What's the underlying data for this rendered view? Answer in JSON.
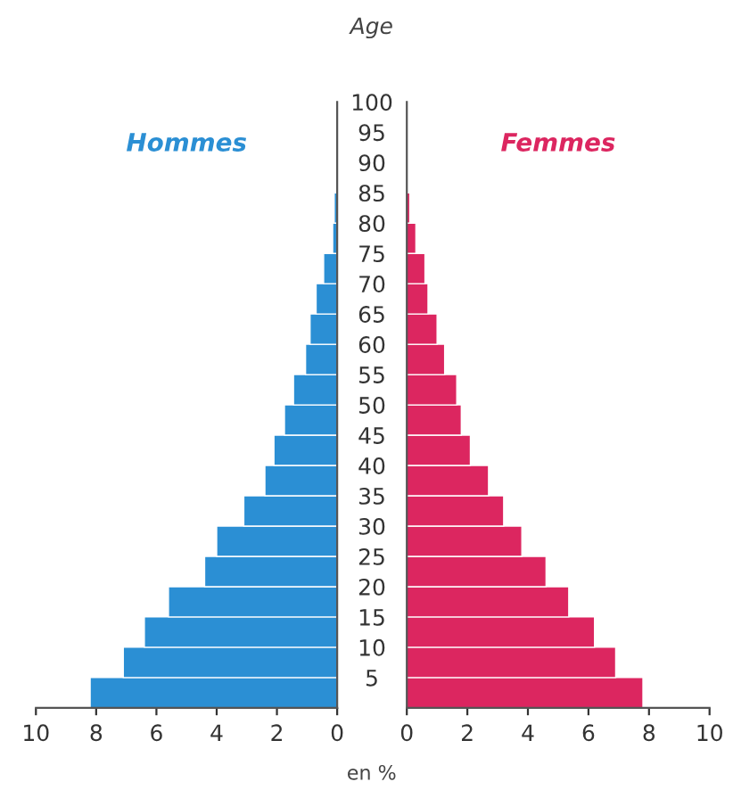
{
  "chart_data": [
    {
      "type": "histogram",
      "orientation": "horizontal",
      "title": "Age",
      "xlabel": "en %",
      "bins": [
        0,
        5,
        10,
        15,
        20,
        25,
        30,
        35,
        40,
        45,
        50,
        55,
        60,
        65,
        70,
        75,
        80,
        85,
        90,
        95,
        100
      ],
      "series": [
        {
          "name": "Hommes",
          "color": "#2b8fd4",
          "values": [
            8.2,
            7.1,
            6.4,
            5.6,
            4.4,
            4.0,
            3.1,
            2.4,
            2.1,
            1.75,
            1.45,
            1.05,
            0.9,
            0.7,
            0.45,
            0.15,
            0.1,
            null,
            null,
            null
          ]
        }
      ],
      "xlim": [
        10,
        0
      ],
      "xticks": [
        10,
        8,
        6,
        4,
        2,
        0
      ],
      "ylim": [
        0,
        100
      ],
      "yticks": [
        5,
        10,
        15,
        20,
        25,
        30,
        35,
        40,
        45,
        50,
        55,
        60,
        65,
        70,
        75,
        80,
        85,
        90,
        95,
        100
      ],
      "legend": false
    },
    {
      "type": "histogram",
      "orientation": "horizontal",
      "bins": [
        0,
        5,
        10,
        15,
        20,
        25,
        30,
        35,
        40,
        45,
        50,
        55,
        60,
        65,
        70,
        75,
        80,
        85,
        90,
        95,
        100
      ],
      "series": [
        {
          "name": "Femmes",
          "color": "#dc2660",
          "values": [
            7.8,
            6.9,
            6.2,
            5.35,
            4.6,
            3.8,
            3.2,
            2.7,
            2.1,
            1.8,
            1.65,
            1.25,
            1.0,
            0.7,
            0.6,
            0.3,
            0.1,
            null,
            null,
            null
          ]
        }
      ],
      "xlim": [
        0,
        10
      ],
      "xticks": [
        0,
        2,
        4,
        6,
        8,
        10
      ],
      "ylim": [
        0,
        100
      ],
      "tick_labels": "x",
      "legend": false
    }
  ]
}
